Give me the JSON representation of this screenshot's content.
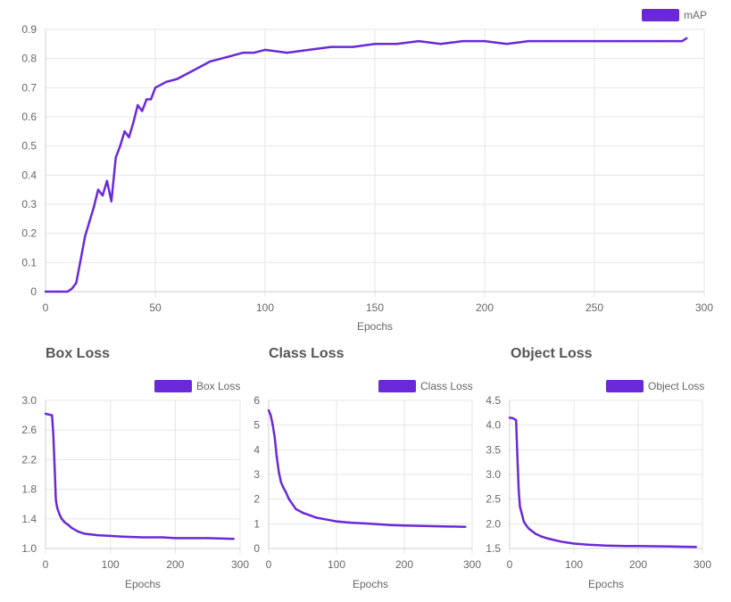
{
  "titles": [
    "Box Loss",
    "Class Loss",
    "Object Loss"
  ],
  "chart_data": [
    {
      "type": "line",
      "title": "",
      "xlabel": "Epochs",
      "ylabel": "",
      "xlim": [
        0,
        300
      ],
      "ylim": [
        0,
        0.9
      ],
      "xticks": [
        0,
        50,
        100,
        150,
        200,
        250,
        300
      ],
      "yticks": [
        0,
        0.1,
        0.2,
        0.3,
        0.4,
        0.5,
        0.6,
        0.7,
        0.8,
        0.9
      ],
      "grid": true,
      "legend": "top-right",
      "color": "#6a29d9",
      "series": [
        {
          "name": "mAP",
          "x": [
            0,
            5,
            10,
            12,
            14,
            16,
            18,
            20,
            22,
            24,
            26,
            28,
            30,
            32,
            34,
            36,
            38,
            40,
            42,
            44,
            46,
            48,
            50,
            55,
            60,
            65,
            70,
            75,
            80,
            85,
            90,
            95,
            100,
            110,
            120,
            130,
            140,
            150,
            160,
            170,
            180,
            190,
            200,
            210,
            220,
            230,
            240,
            250,
            260,
            270,
            280,
            290,
            292
          ],
          "y": [
            0,
            0,
            0,
            0.01,
            0.03,
            0.11,
            0.19,
            0.24,
            0.29,
            0.35,
            0.33,
            0.38,
            0.31,
            0.46,
            0.5,
            0.55,
            0.53,
            0.58,
            0.64,
            0.62,
            0.66,
            0.66,
            0.7,
            0.72,
            0.73,
            0.75,
            0.77,
            0.79,
            0.8,
            0.81,
            0.82,
            0.82,
            0.83,
            0.82,
            0.83,
            0.84,
            0.84,
            0.85,
            0.85,
            0.86,
            0.85,
            0.86,
            0.86,
            0.85,
            0.86,
            0.86,
            0.86,
            0.86,
            0.86,
            0.86,
            0.86,
            0.86,
            0.87
          ]
        }
      ]
    },
    {
      "type": "line",
      "title": "Box Loss",
      "xlabel": "Epochs",
      "ylabel": "",
      "xlim": [
        0,
        300
      ],
      "ylim": [
        1.0,
        3.0
      ],
      "xticks": [
        0,
        100,
        200,
        300
      ],
      "yticks": [
        1.0,
        1.4,
        1.8,
        2.2,
        2.6,
        3.0
      ],
      "grid": true,
      "legend": "top-right",
      "color": "#6a29d9",
      "series": [
        {
          "name": "Box Loss",
          "x": [
            0,
            5,
            10,
            12,
            14,
            16,
            18,
            20,
            22,
            25,
            30,
            35,
            40,
            50,
            60,
            70,
            80,
            100,
            120,
            150,
            180,
            200,
            250,
            290
          ],
          "y": [
            2.82,
            2.81,
            2.8,
            2.55,
            2.1,
            1.65,
            1.55,
            1.5,
            1.45,
            1.4,
            1.35,
            1.32,
            1.28,
            1.23,
            1.2,
            1.19,
            1.18,
            1.17,
            1.16,
            1.15,
            1.15,
            1.14,
            1.14,
            1.13
          ]
        }
      ]
    },
    {
      "type": "line",
      "title": "Class Loss",
      "xlabel": "Epochs",
      "ylabel": "",
      "xlim": [
        0,
        300
      ],
      "ylim": [
        0,
        6
      ],
      "xticks": [
        0,
        100,
        200,
        300
      ],
      "yticks": [
        0,
        1,
        2,
        3,
        4,
        5,
        6
      ],
      "grid": true,
      "legend": "top-right",
      "color": "#6a29d9",
      "series": [
        {
          "name": "Class Loss",
          "x": [
            0,
            3,
            6,
            9,
            12,
            15,
            18,
            21,
            25,
            30,
            40,
            50,
            60,
            70,
            80,
            100,
            120,
            150,
            180,
            200,
            250,
            290
          ],
          "y": [
            5.6,
            5.4,
            5.0,
            4.5,
            3.7,
            3.1,
            2.7,
            2.5,
            2.3,
            2.0,
            1.6,
            1.45,
            1.35,
            1.25,
            1.2,
            1.1,
            1.05,
            1.0,
            0.95,
            0.93,
            0.9,
            0.88
          ]
        }
      ]
    },
    {
      "type": "line",
      "title": "Object Loss",
      "xlabel": "Epochs",
      "ylabel": "",
      "xlim": [
        0,
        300
      ],
      "ylim": [
        1.5,
        4.5
      ],
      "xticks": [
        0,
        100,
        200,
        300
      ],
      "yticks": [
        1.5,
        2.0,
        2.5,
        3.0,
        3.5,
        4.0,
        4.5
      ],
      "grid": true,
      "legend": "top-right",
      "color": "#6a29d9",
      "series": [
        {
          "name": "Object Loss",
          "x": [
            0,
            5,
            10,
            12,
            14,
            16,
            18,
            20,
            22,
            25,
            30,
            35,
            40,
            50,
            60,
            70,
            80,
            100,
            120,
            150,
            180,
            200,
            250,
            290
          ],
          "y": [
            4.15,
            4.14,
            4.1,
            3.4,
            2.7,
            2.35,
            2.25,
            2.15,
            2.05,
            1.98,
            1.9,
            1.85,
            1.8,
            1.74,
            1.7,
            1.67,
            1.64,
            1.6,
            1.58,
            1.56,
            1.55,
            1.55,
            1.54,
            1.53
          ]
        }
      ]
    }
  ]
}
